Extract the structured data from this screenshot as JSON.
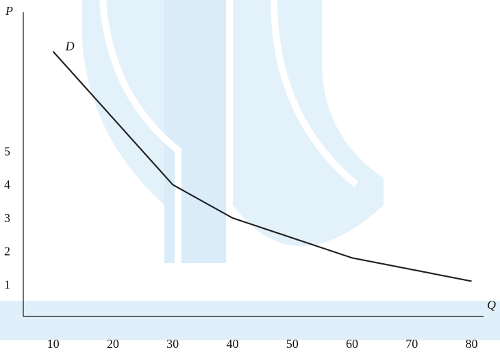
{
  "chart_data": {
    "type": "line",
    "xlabel": "Q",
    "ylabel": "P",
    "x_ticks": [
      10,
      20,
      30,
      40,
      50,
      60,
      70,
      80
    ],
    "y_ticks": [
      1,
      2,
      3,
      4,
      5
    ],
    "xlim": [
      5,
      82
    ],
    "ylim": [
      0,
      9
    ],
    "grid": false,
    "series": [
      {
        "name": "D",
        "x": [
          10,
          30,
          40,
          60,
          80
        ],
        "y": [
          8.0,
          4.0,
          3.0,
          1.8,
          1.1
        ]
      }
    ],
    "colors": {
      "line": "#222222",
      "axis": "#111111",
      "watermark": "#dcedf8"
    }
  }
}
